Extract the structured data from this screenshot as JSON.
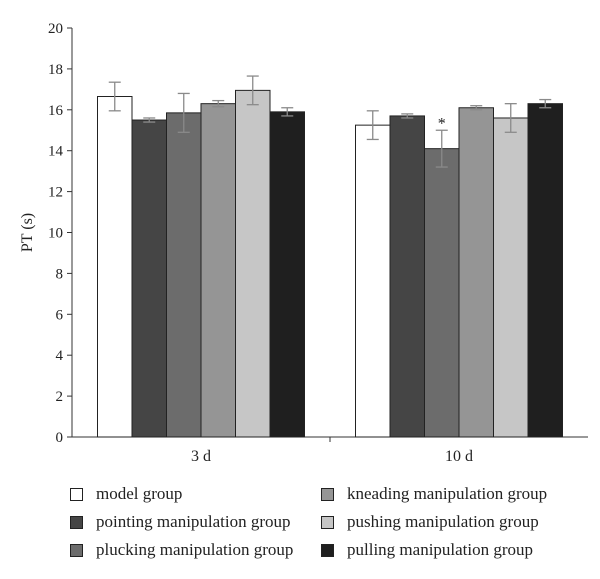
{
  "chart_data": {
    "type": "bar",
    "title": "",
    "xlabel": "",
    "ylabel": "PT (s)",
    "ylim": [
      0,
      20
    ],
    "yticks": [
      "0",
      "2",
      "4",
      "6",
      "8",
      "10",
      "12",
      "14",
      "16",
      "18",
      "20"
    ],
    "categories": [
      "3 d",
      "10 d"
    ],
    "grid": false,
    "legend_position": "bottom",
    "series": [
      {
        "name": "model group",
        "color": "#ffffff",
        "values": [
          16.65,
          15.25
        ],
        "errors": [
          0.7,
          0.7
        ],
        "annotations": [
          "",
          ""
        ]
      },
      {
        "name": "pointing manipulation group",
        "color": "#454545",
        "values": [
          15.5,
          15.7
        ],
        "errors": [
          0.1,
          0.1
        ],
        "annotations": [
          "",
          ""
        ]
      },
      {
        "name": "plucking manipulation group",
        "color": "#6c6c6c",
        "values": [
          15.85,
          14.1
        ],
        "errors": [
          0.95,
          0.9
        ],
        "annotations": [
          "",
          "*"
        ]
      },
      {
        "name": "kneading manipulation group",
        "color": "#959595",
        "values": [
          16.3,
          16.1
        ],
        "errors": [
          0.15,
          0.1
        ],
        "annotations": [
          "",
          ""
        ]
      },
      {
        "name": "pushing manipulation group",
        "color": "#c6c6c6",
        "values": [
          16.95,
          15.6
        ],
        "errors": [
          0.7,
          0.7
        ],
        "annotations": [
          "",
          ""
        ]
      },
      {
        "name": "pulling manipulation group",
        "color": "#1f1f1f",
        "values": [
          15.9,
          16.3
        ],
        "errors": [
          0.2,
          0.2
        ],
        "annotations": [
          "",
          ""
        ]
      }
    ]
  }
}
